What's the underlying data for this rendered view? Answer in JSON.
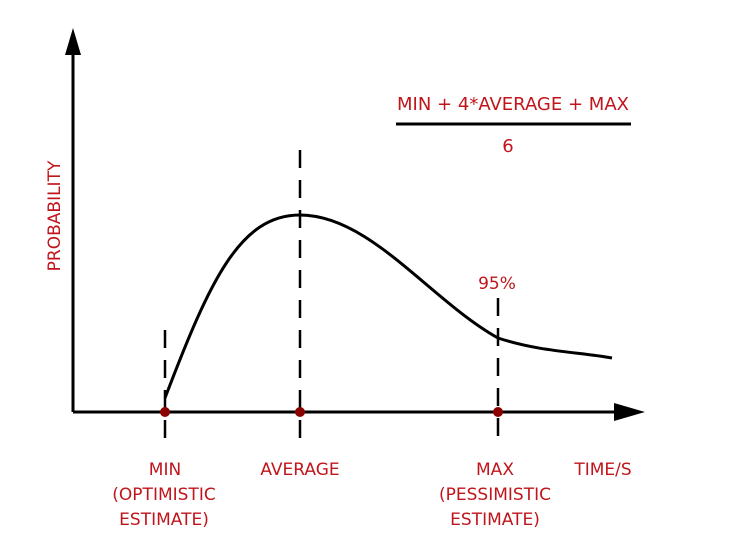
{
  "formula": {
    "numerator": "MIN + 4*AVERAGE + MAX",
    "denominator": "6"
  },
  "y_axis_label": "PROBABILITY",
  "x_axis_label": "TIME/S",
  "percent_label": "95%",
  "markers": {
    "min": {
      "line1": "MIN",
      "line2": "(OPTIMISTIC",
      "line3": "ESTIMATE)"
    },
    "average": {
      "line1": "AVERAGE"
    },
    "max": {
      "line1": "MAX",
      "line2": "(PESSIMISTIC",
      "line3": "ESTIMATE)"
    }
  },
  "colors": {
    "label": "#c0151b",
    "line": "#000000",
    "point": "#8b0000"
  }
}
